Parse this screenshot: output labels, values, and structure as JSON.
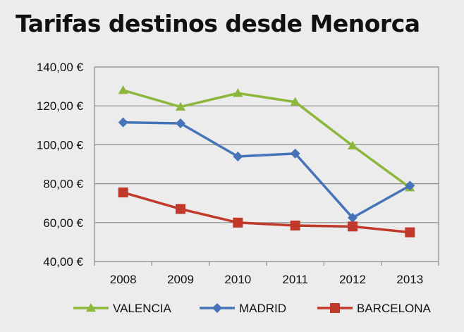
{
  "chart_data": {
    "type": "line",
    "title": "Tarifas destinos desde Menorca",
    "xlabel": "",
    "ylabel": "",
    "categories": [
      "2008",
      "2009",
      "2010",
      "2011",
      "2012",
      "2013"
    ],
    "y_tick_labels": [
      "40,00 €",
      "60,00 €",
      "80,00 €",
      "100,00 €",
      "120,00 €",
      "140,00 €"
    ],
    "y_ticks": [
      40,
      60,
      80,
      100,
      120,
      140
    ],
    "ylim": [
      40,
      140
    ],
    "grid": true,
    "legend_position": "bottom",
    "series": [
      {
        "name": "VALENCIA",
        "color": "#8db63c",
        "marker": "triangle",
        "values": [
          128,
          119.5,
          126.5,
          122,
          99.5,
          78
        ]
      },
      {
        "name": "MADRID",
        "color": "#4574b8",
        "marker": "diamond",
        "values": [
          111.5,
          111,
          94,
          95.5,
          62.5,
          79
        ]
      },
      {
        "name": "BARCELONA",
        "color": "#c0392b",
        "marker": "square",
        "values": [
          75.5,
          67,
          60,
          58.5,
          58,
          55
        ]
      }
    ]
  }
}
